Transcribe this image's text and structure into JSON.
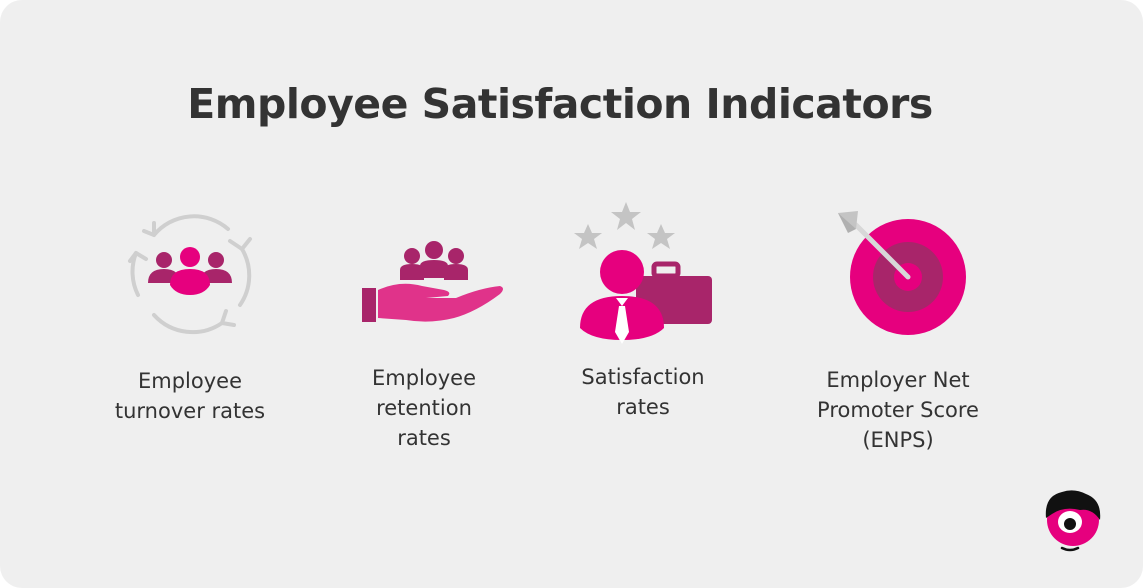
{
  "title": "Employee Satisfaction Indicators",
  "colors": {
    "background": "#efefef",
    "text": "#333333",
    "magenta": "#e6007e",
    "pink": "#e0338a",
    "plum": "#a8256a",
    "grey": "#c9c9c9"
  },
  "indicators": [
    {
      "icon": "turnover-cycle-icon",
      "lines": [
        "Employee",
        "turnover rates"
      ]
    },
    {
      "icon": "hand-holding-people-icon",
      "lines": [
        "Employee",
        "retention",
        "rates"
      ]
    },
    {
      "icon": "employee-stars-briefcase-icon",
      "lines": [
        "Satisfaction",
        "rates"
      ]
    },
    {
      "icon": "target-dart-icon",
      "lines": [
        "Employer Net",
        "Promoter Score",
        "(ENPS)"
      ]
    }
  ],
  "logo": {
    "icon": "brand-mascot-icon"
  }
}
